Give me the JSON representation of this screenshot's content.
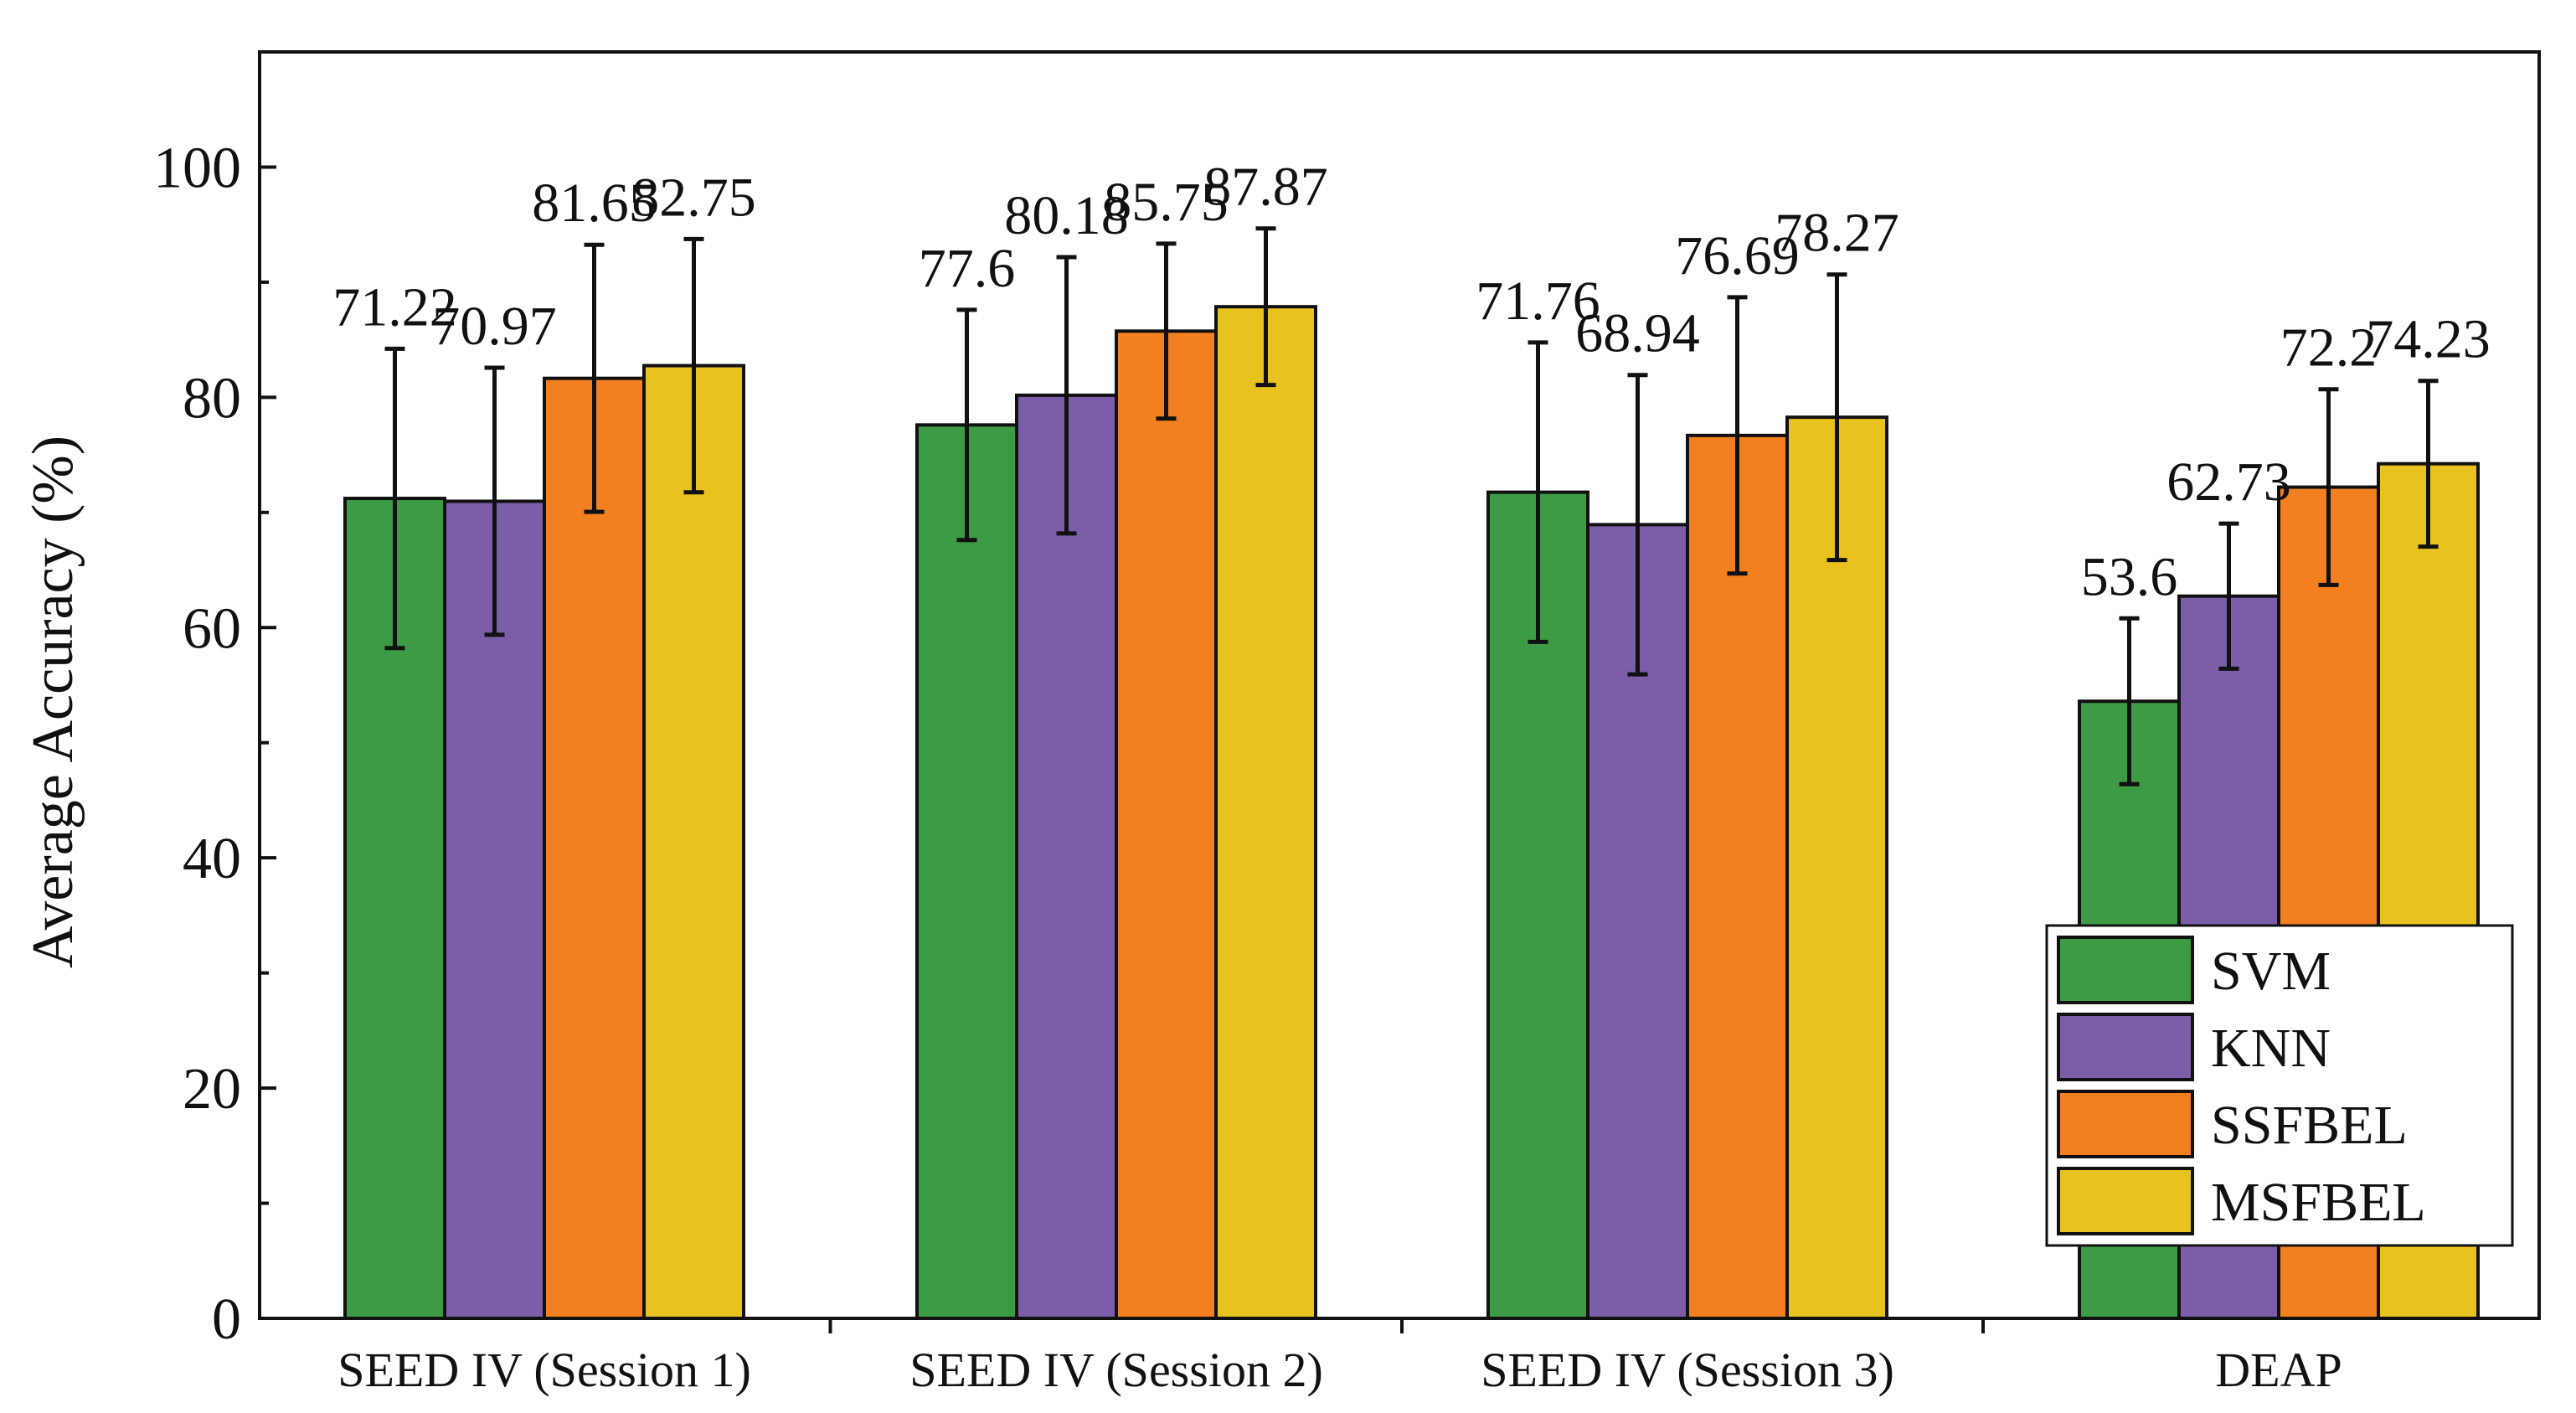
{
  "chart_data": {
    "type": "bar",
    "title": "",
    "xlabel": "",
    "ylabel": "Average Accuracy (%)",
    "ylim": [
      0,
      110
    ],
    "yticks": [
      0,
      20,
      40,
      60,
      80,
      100
    ],
    "grid": false,
    "legend_position": "bottom-right",
    "categories": [
      "SEED IV (Session 1)",
      "SEED IV (Session 2)",
      "SEED IV (Session 3)",
      "DEAP"
    ],
    "series": [
      {
        "name": "SVM",
        "color": "#3d9a45",
        "values": [
          71.22,
          77.6,
          71.76,
          53.6
        ],
        "value_labels": [
          "71.22",
          "77.6",
          "71.76",
          "53.6"
        ],
        "errors": [
          13,
          10,
          13,
          7.2
        ]
      },
      {
        "name": "KNN",
        "color": "#7b5ea7",
        "values": [
          70.97,
          80.18,
          68.94,
          62.73
        ],
        "value_labels": [
          "70.97",
          "80.18",
          "68.94",
          "62.73"
        ],
        "errors": [
          11.6,
          12,
          13,
          6.3
        ]
      },
      {
        "name": "SSFBEL",
        "color": "#f27f20",
        "values": [
          81.65,
          85.75,
          76.69,
          72.2
        ],
        "value_labels": [
          "81.65",
          "85.75",
          "76.69",
          "72.2"
        ],
        "errors": [
          11.6,
          7.6,
          12,
          8.5
        ]
      },
      {
        "name": "MSFBEL",
        "color": "#e8c31f",
        "values": [
          82.75,
          87.87,
          78.27,
          74.23
        ],
        "value_labels": [
          "82.75",
          "87.87",
          "78.27",
          "74.23"
        ],
        "errors": [
          11,
          6.8,
          12.4,
          7.2
        ]
      }
    ]
  }
}
